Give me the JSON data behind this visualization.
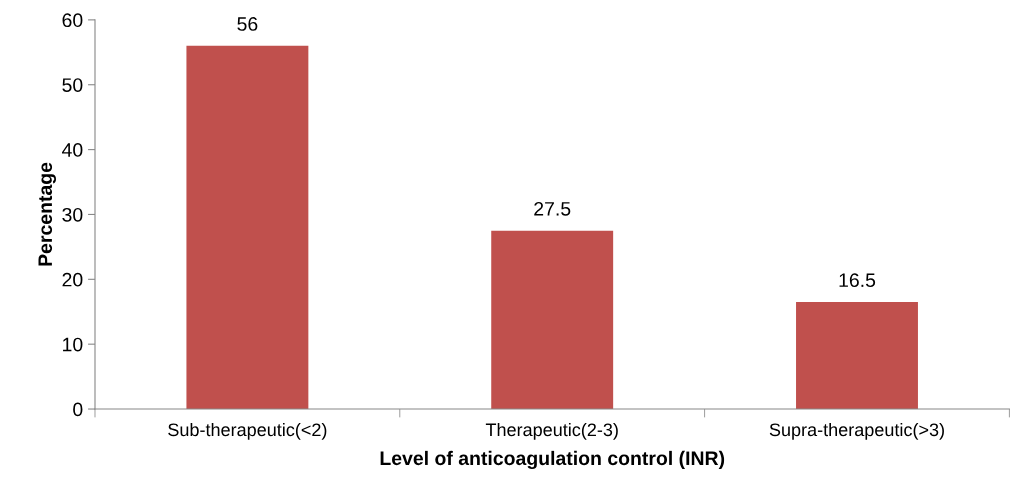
{
  "chart_data": {
    "type": "bar",
    "xlabel": "Level of anticoagulation control (INR)",
    "ylabel": "Percentage",
    "categories": [
      "Sub-therapeutic(<2)",
      "Therapeutic(2-3)",
      "Supra-therapeutic(>3)"
    ],
    "values": [
      56,
      27.5,
      16.5
    ],
    "color": "#c0504d",
    "ylim": [
      0,
      60
    ],
    "yticks": [
      0,
      10,
      20,
      30,
      40,
      50,
      60
    ],
    "grid": false,
    "data_labels": true
  }
}
